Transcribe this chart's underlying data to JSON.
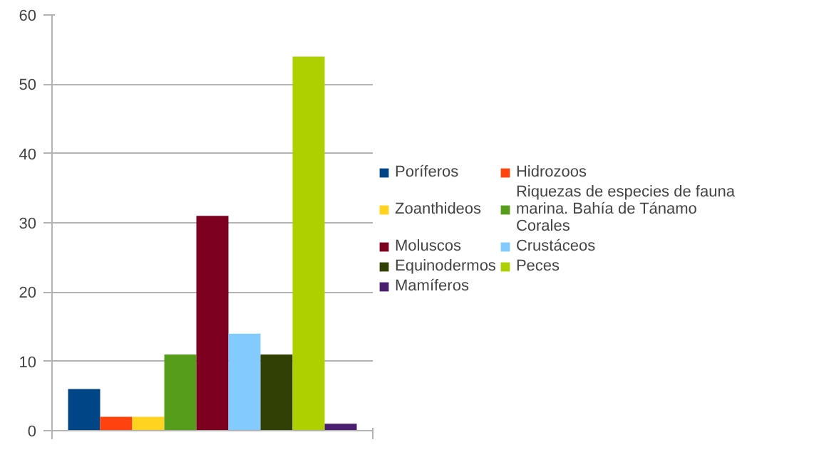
{
  "chart_data": {
    "type": "bar",
    "categories": [
      null
    ],
    "series": [
      {
        "name": "Poríferos",
        "color": "#004586",
        "values": [
          6
        ]
      },
      {
        "name": "Hidrozoos",
        "color": "#ff420e",
        "values": [
          2
        ]
      },
      {
        "name": "Zoanthideos",
        "color": "#ffd320",
        "values": [
          2
        ]
      },
      {
        "name": "Riquezas de especies de fauna marina. Bahía de Tánamo Corales",
        "color": "#579d1c",
        "values": [
          11
        ]
      },
      {
        "name": "Moluscos",
        "color": "#7e0021",
        "values": [
          31
        ]
      },
      {
        "name": "Crustáceos",
        "color": "#83caff",
        "values": [
          14
        ]
      },
      {
        "name": "Equinodermos",
        "color": "#314004",
        "values": [
          11
        ]
      },
      {
        "name": "Peces",
        "color": "#aecf00",
        "values": [
          54
        ]
      },
      {
        "name": "Mamíferos",
        "color": "#4b1f6f",
        "values": [
          1
        ]
      }
    ],
    "ylim": [
      0,
      60
    ],
    "yticks": [
      0,
      10,
      20,
      30,
      40,
      50,
      60
    ],
    "grid": "y",
    "legend": "right"
  }
}
